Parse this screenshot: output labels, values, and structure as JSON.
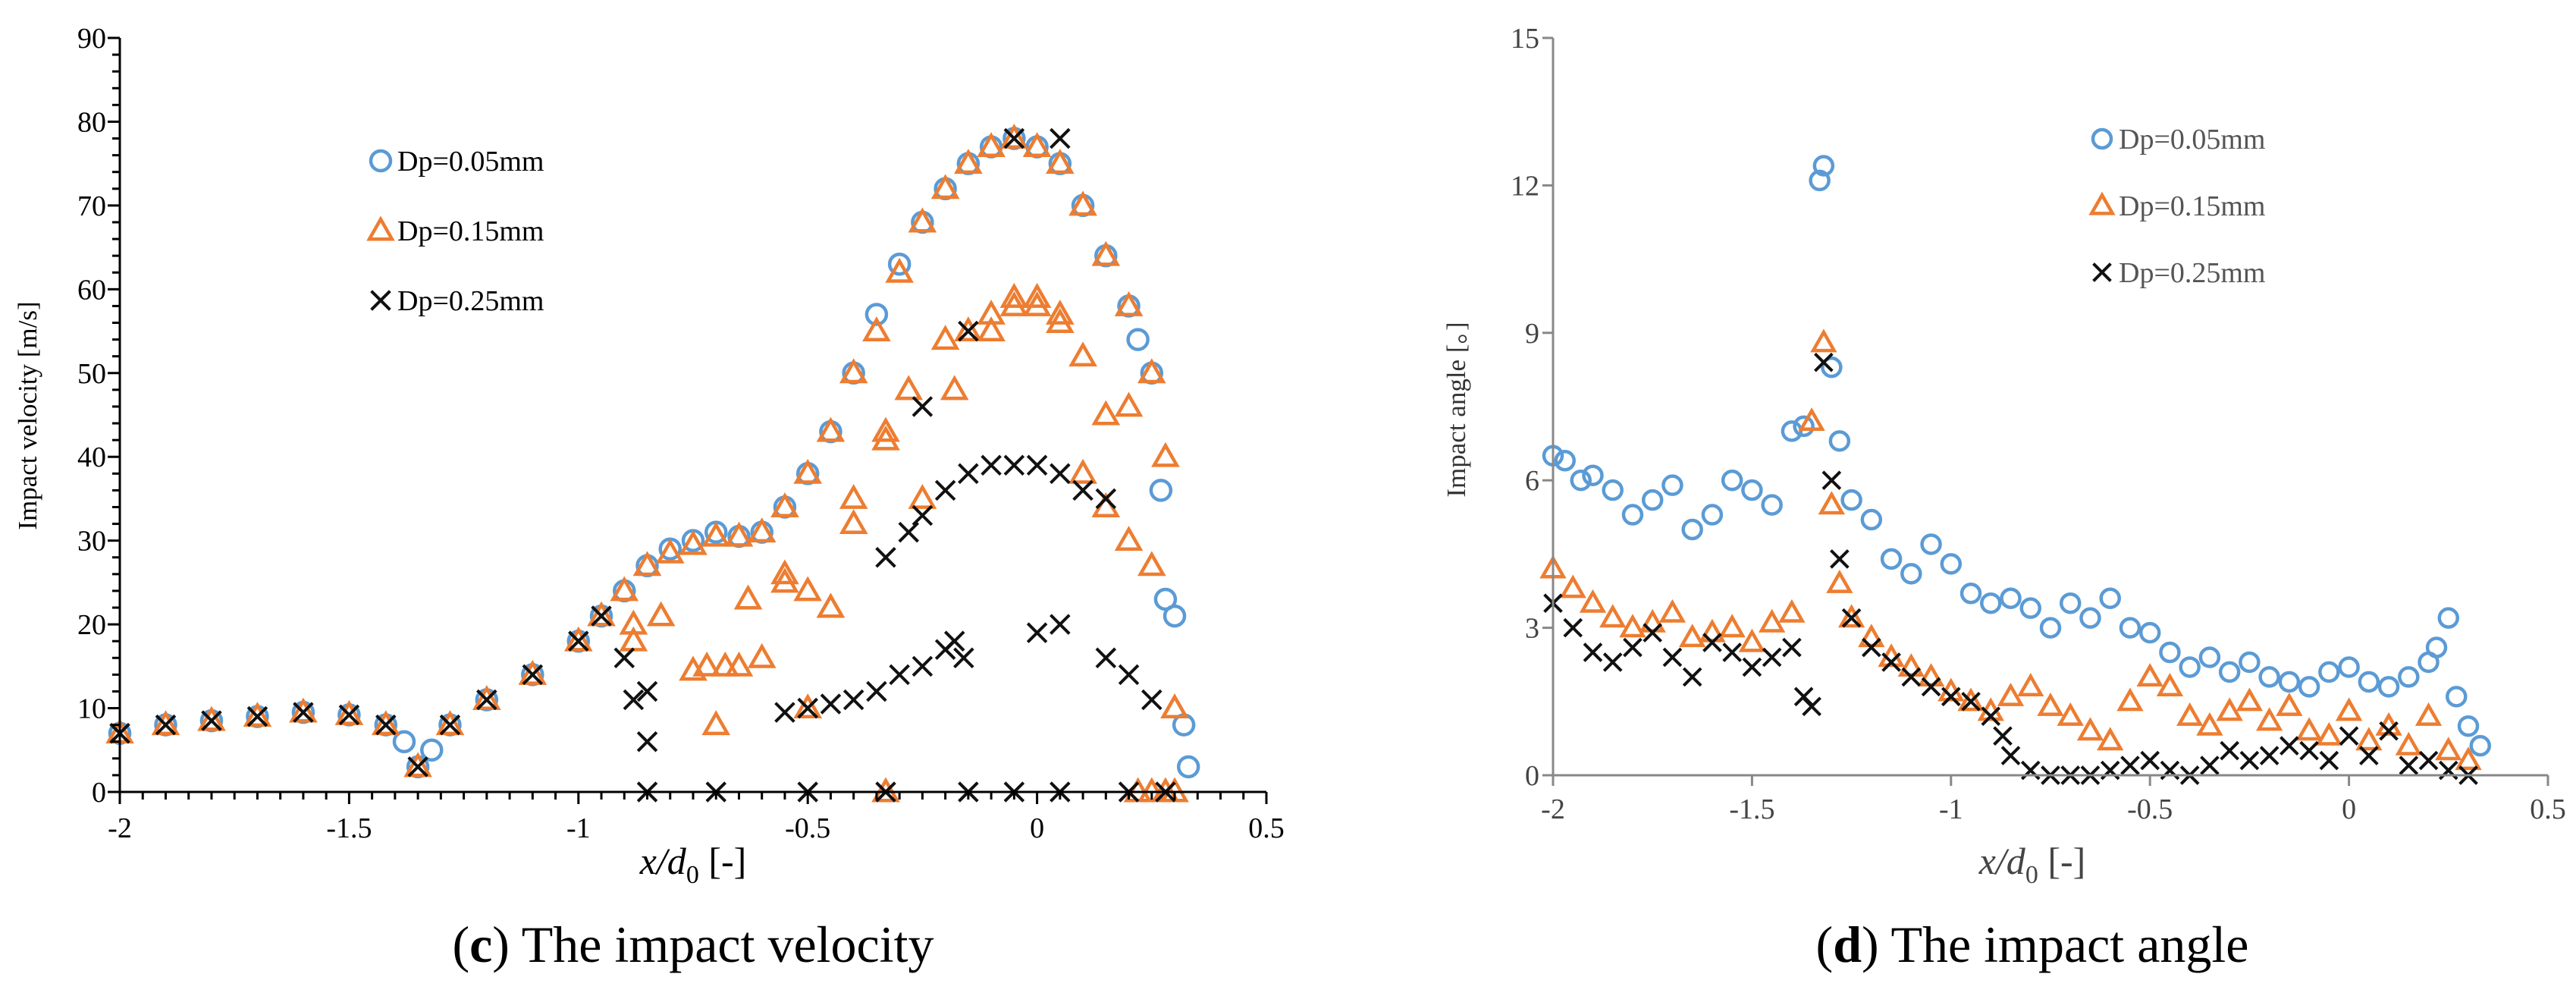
{
  "chart_data": [
    {
      "type": "scatter",
      "panel": "c",
      "caption_letter": "c",
      "caption_text": " The impact velocity",
      "ylabel": "Impact velocity [m/s]",
      "xlabel_main": "x/d",
      "xlabel_sub": "0",
      "xlabel_unit": "[-]",
      "xlim": [
        -2,
        0.5
      ],
      "ylim": [
        0,
        90
      ],
      "xticks": [
        "-2",
        "-1.5",
        "-1",
        "-0.5",
        "0",
        "0.5"
      ],
      "yticks": [
        "0",
        "10",
        "20",
        "30",
        "40",
        "50",
        "60",
        "70",
        "80",
        "90"
      ],
      "legend_position": "upper-left",
      "series": [
        {
          "name": "Dp=0.05mm",
          "marker": "circle",
          "color": "#5B9BD5",
          "x": [
            -2.0,
            -1.9,
            -1.8,
            -1.7,
            -1.6,
            -1.5,
            -1.42,
            -1.38,
            -1.35,
            -1.32,
            -1.28,
            -1.2,
            -1.1,
            -1.0,
            -0.95,
            -0.9,
            -0.85,
            -0.8,
            -0.75,
            -0.7,
            -0.65,
            -0.6,
            -0.55,
            -0.5,
            -0.45,
            -0.4,
            -0.35,
            -0.3,
            -0.25,
            -0.2,
            -0.15,
            -0.1,
            -0.05,
            0.0,
            0.05,
            0.1,
            0.15,
            0.2,
            0.22,
            0.25,
            0.27,
            0.28,
            0.3,
            0.32,
            0.33
          ],
          "y": [
            7,
            8,
            8.5,
            9,
            9.5,
            9.2,
            8,
            6,
            3,
            5,
            8,
            11,
            14,
            18,
            21,
            24,
            27,
            29,
            30,
            31,
            30.5,
            31,
            34,
            38,
            43,
            50,
            57,
            63,
            68,
            72,
            75,
            77,
            78,
            77,
            75,
            70,
            64,
            58,
            54,
            50,
            36,
            23,
            21,
            8,
            3
          ]
        },
        {
          "name": "Dp=0.15mm",
          "marker": "triangle",
          "color": "#ED7D31",
          "x": [
            -2.0,
            -1.9,
            -1.8,
            -1.7,
            -1.6,
            -1.5,
            -1.42,
            -1.35,
            -1.28,
            -1.2,
            -1.1,
            -1.0,
            -0.95,
            -0.9,
            -0.85,
            -0.8,
            -0.75,
            -0.7,
            -0.65,
            -0.6,
            -0.55,
            -0.5,
            -0.45,
            -0.4,
            -0.35,
            -0.3,
            -0.25,
            -0.2,
            -0.15,
            -0.1,
            -0.05,
            0.0,
            0.05,
            0.1,
            0.15,
            0.2,
            0.25,
            0.28,
            0.3,
            -0.88,
            -0.82,
            -0.75,
            -0.7,
            -0.65,
            -0.6,
            -0.55,
            -0.5,
            -0.45,
            -0.4,
            -0.33,
            -0.28,
            -0.2,
            -0.15,
            -0.1,
            -0.05,
            0.0,
            0.05,
            0.1,
            0.15,
            0.2,
            0.25,
            0.3,
            -0.88,
            -0.72,
            -0.68,
            -0.63,
            -0.55,
            -0.5,
            -0.45,
            -0.4,
            -0.33,
            -0.25,
            -0.18,
            -0.1,
            -0.05,
            0.0,
            0.05,
            0.1,
            0.15,
            0.2,
            -0.33,
            0.22,
            0.25,
            0.28,
            0.3
          ],
          "y": [
            7,
            8,
            8.5,
            9,
            9.5,
            9.2,
            8,
            3,
            8,
            11,
            14,
            18,
            21,
            24,
            27,
            28.5,
            29.5,
            30.5,
            30.5,
            31,
            34,
            38,
            43,
            50,
            55,
            62,
            68,
            72,
            75,
            77,
            78,
            77,
            75,
            70,
            64,
            58,
            50,
            40,
            10,
            18,
            21,
            14.5,
            8,
            15,
            16,
            26,
            24,
            22,
            32,
            43,
            48,
            54,
            55,
            57,
            59,
            58,
            56,
            38,
            34,
            30,
            27,
            10,
            20,
            15,
            15,
            23,
            25,
            10,
            22,
            35,
            42,
            35,
            48,
            55,
            58,
            59,
            57,
            52,
            45,
            46,
            0,
            0,
            0,
            0,
            0
          ]
        },
        {
          "name": "Dp=0.25mm",
          "marker": "x",
          "color": "#111111",
          "x": [
            -2.0,
            -1.9,
            -1.8,
            -1.7,
            -1.6,
            -1.5,
            -1.42,
            -1.35,
            -1.28,
            -1.2,
            -1.1,
            -1.0,
            -0.95,
            -0.9,
            -0.85,
            -0.88,
            -0.85,
            -0.55,
            -0.5,
            -0.45,
            -0.4,
            -0.35,
            -0.3,
            -0.25,
            -0.2,
            -0.18,
            -0.16,
            0.0,
            0.05,
            0.15,
            0.2,
            0.25,
            -0.33,
            -0.28,
            -0.25,
            -0.2,
            -0.15,
            -0.1,
            -0.05,
            0.0,
            0.05,
            0.1,
            0.15,
            -0.25,
            -0.15,
            -0.05,
            0.05,
            -0.85,
            -0.7,
            -0.5,
            -0.33,
            -0.15,
            -0.05,
            0.05,
            0.2,
            0.28
          ],
          "y": [
            7,
            8,
            8.5,
            9,
            9.5,
            9.2,
            8,
            3,
            8,
            11,
            14,
            18,
            21,
            16,
            12,
            11,
            6,
            9.5,
            10,
            10.5,
            11,
            12,
            14,
            15,
            17,
            18,
            16,
            19,
            20,
            16,
            14,
            11,
            28,
            31,
            33,
            36,
            38,
            39,
            39,
            39,
            38,
            36,
            35,
            46,
            55,
            78,
            78,
            0,
            0,
            0,
            0,
            0,
            0,
            0,
            0,
            0
          ]
        }
      ],
      "legend": {
        "items": [
          "Dp=0.05mm",
          "Dp=0.15mm",
          "Dp=0.25mm"
        ]
      }
    },
    {
      "type": "scatter",
      "panel": "d",
      "caption_letter": "d",
      "caption_text": " The impact angle",
      "ylabel": "Impact angle [。]",
      "xlabel_main": "x/d",
      "xlabel_sub": "0",
      "xlabel_unit": "[-]",
      "xlim": [
        -2,
        0.5
      ],
      "ylim": [
        0,
        15
      ],
      "xticks": [
        "-2",
        "-1.5",
        "-1",
        "-0.5",
        "0",
        "0.5"
      ],
      "yticks": [
        "0",
        "3",
        "6",
        "9",
        "12",
        "15"
      ],
      "legend_position": "upper-right",
      "series": [
        {
          "name": "Dp=0.05mm",
          "marker": "circle",
          "color": "#5B9BD5",
          "x": [
            -2.0,
            -1.97,
            -1.93,
            -1.9,
            -1.85,
            -1.8,
            -1.75,
            -1.7,
            -1.65,
            -1.6,
            -1.55,
            -1.5,
            -1.45,
            -1.4,
            -1.37,
            -1.33,
            -1.32,
            -1.3,
            -1.28,
            -1.25,
            -1.2,
            -1.15,
            -1.1,
            -1.05,
            -1.0,
            -0.95,
            -0.9,
            -0.85,
            -0.8,
            -0.75,
            -0.7,
            -0.65,
            -0.6,
            -0.55,
            -0.5,
            -0.45,
            -0.4,
            -0.35,
            -0.3,
            -0.25,
            -0.2,
            -0.15,
            -0.1,
            -0.05,
            0.0,
            0.05,
            0.1,
            0.15,
            0.2,
            0.22,
            0.25,
            0.27,
            0.3,
            0.33
          ],
          "y": [
            6.5,
            6.4,
            6.0,
            6.1,
            5.8,
            5.3,
            5.6,
            5.9,
            5.0,
            5.3,
            6.0,
            5.8,
            5.5,
            7.0,
            7.1,
            12.1,
            12.4,
            8.3,
            6.8,
            5.6,
            5.2,
            4.4,
            4.1,
            4.7,
            4.3,
            3.7,
            3.5,
            3.6,
            3.4,
            3.0,
            3.5,
            3.2,
            3.6,
            3.0,
            2.9,
            2.5,
            2.2,
            2.4,
            2.1,
            2.3,
            2.0,
            1.9,
            1.8,
            2.1,
            2.2,
            1.9,
            1.8,
            2.0,
            2.3,
            2.6,
            3.2,
            1.6,
            1.0,
            0.6
          ]
        },
        {
          "name": "Dp=0.15mm",
          "marker": "triangle",
          "color": "#ED7D31",
          "x": [
            -2.0,
            -1.95,
            -1.9,
            -1.85,
            -1.8,
            -1.75,
            -1.7,
            -1.65,
            -1.6,
            -1.55,
            -1.5,
            -1.45,
            -1.4,
            -1.35,
            -1.32,
            -1.3,
            -1.28,
            -1.25,
            -1.2,
            -1.15,
            -1.1,
            -1.05,
            -1.0,
            -0.95,
            -0.9,
            -0.85,
            -0.8,
            -0.75,
            -0.7,
            -0.65,
            -0.6,
            -0.55,
            -0.5,
            -0.45,
            -0.4,
            -0.35,
            -0.3,
            -0.25,
            -0.2,
            -0.15,
            -0.1,
            -0.05,
            0.0,
            0.05,
            0.1,
            0.15,
            0.2,
            0.25,
            0.3
          ],
          "y": [
            4.2,
            3.8,
            3.5,
            3.2,
            3.0,
            3.1,
            3.3,
            2.8,
            2.9,
            3.0,
            2.7,
            3.1,
            3.3,
            7.2,
            8.8,
            5.5,
            3.9,
            3.2,
            2.8,
            2.4,
            2.2,
            2.0,
            1.7,
            1.5,
            1.3,
            1.6,
            1.8,
            1.4,
            1.2,
            0.9,
            0.7,
            1.5,
            2.0,
            1.8,
            1.2,
            1.0,
            1.3,
            1.5,
            1.1,
            1.4,
            0.9,
            0.8,
            1.3,
            0.7,
            1.0,
            0.6,
            1.2,
            0.5,
            0.3
          ]
        },
        {
          "name": "Dp=0.25mm",
          "marker": "x",
          "color": "#111111",
          "x": [
            -2.0,
            -1.95,
            -1.9,
            -1.85,
            -1.8,
            -1.75,
            -1.7,
            -1.65,
            -1.6,
            -1.55,
            -1.5,
            -1.45,
            -1.4,
            -1.37,
            -1.35,
            -1.32,
            -1.3,
            -1.28,
            -1.25,
            -1.2,
            -1.15,
            -1.1,
            -1.05,
            -1.0,
            -0.95,
            -0.9,
            -0.87,
            -0.85,
            -0.8,
            -0.75,
            -0.7,
            -0.65,
            -0.6,
            -0.55,
            -0.5,
            -0.45,
            -0.4,
            -0.35,
            -0.3,
            -0.25,
            -0.2,
            -0.15,
            -0.1,
            -0.05,
            0.0,
            0.05,
            0.1,
            0.15,
            0.2,
            0.25,
            0.3
          ],
          "y": [
            3.5,
            3.0,
            2.5,
            2.3,
            2.6,
            2.9,
            2.4,
            2.0,
            2.7,
            2.5,
            2.2,
            2.4,
            2.6,
            1.6,
            1.4,
            8.4,
            6.0,
            4.4,
            3.2,
            2.6,
            2.3,
            2.0,
            1.8,
            1.6,
            1.5,
            1.2,
            0.8,
            0.4,
            0.1,
            0.0,
            0.0,
            0.0,
            0.1,
            0.2,
            0.3,
            0.1,
            0.0,
            0.2,
            0.5,
            0.3,
            0.4,
            0.6,
            0.5,
            0.3,
            0.8,
            0.4,
            0.9,
            0.2,
            0.3,
            0.1,
            0.0
          ]
        }
      ],
      "legend": {
        "items": [
          "Dp=0.05mm",
          "Dp=0.15mm",
          "Dp=0.25mm"
        ]
      }
    }
  ]
}
